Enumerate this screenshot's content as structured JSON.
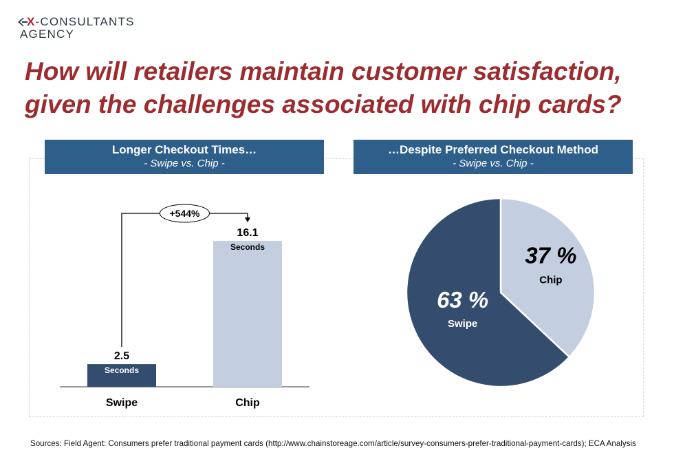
{
  "logo": {
    "line1_prefix": "X",
    "line1_rest": "-CONSULTANTS",
    "line2": "AGENCY"
  },
  "title": "How will retailers maintain customer satisfaction, given the challenges associated with chip cards?",
  "left_panel": {
    "title": "Longer Checkout Times…",
    "subtitle": "- Swipe vs. Chip -"
  },
  "right_panel": {
    "title": "…Despite Preferred Checkout Method",
    "subtitle": "- Swipe vs. Chip -"
  },
  "chart_data": [
    {
      "type": "bar",
      "categories": [
        "Swipe",
        "Chip"
      ],
      "values": [
        2.5,
        16.1
      ],
      "value_labels": [
        "2.5",
        "16.1"
      ],
      "unit_label": "Seconds",
      "annotation": "+544%",
      "colors": [
        "#344c6e",
        "#c3cee0"
      ]
    },
    {
      "type": "pie",
      "slices": [
        {
          "label": "Chip",
          "value": 37,
          "value_label": "37 %",
          "color": "#c3cee0"
        },
        {
          "label": "Swipe",
          "value": 63,
          "value_label": "63 %",
          "color": "#344c6e"
        }
      ]
    }
  ],
  "footer": "Sources: Field Agent: Consumers prefer traditional payment cards (http://www.chainstoreage.com/article/survey-consumers-prefer-traditional-payment-cards); ECA Analysis"
}
